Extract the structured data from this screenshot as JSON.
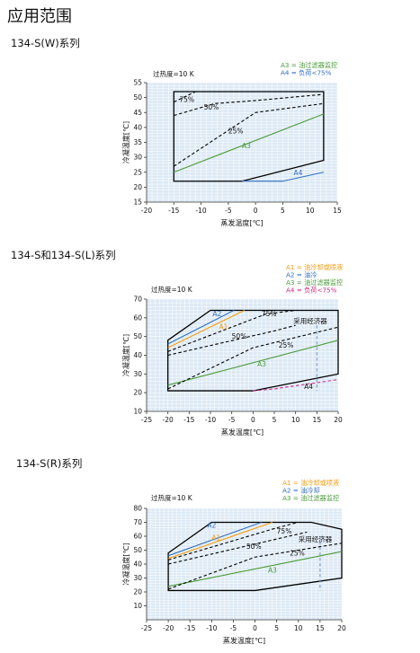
{
  "page": {
    "title": "应用范围"
  },
  "sections": [
    {
      "title": "134-S(W)系列"
    },
    {
      "title": "134-S和134-S(L)系列"
    },
    {
      "title": "134-S(R)系列"
    }
  ],
  "chart_data": [
    {
      "type": "area",
      "subtitle": "过热度=10 K",
      "xlabel": "蒸发温度[℃]",
      "ylabel": "冷凝温度[℃]",
      "xlim": [
        -20,
        15
      ],
      "ylim": [
        15,
        55
      ],
      "xticks": [
        -20,
        -15,
        -10,
        -5,
        0,
        5,
        10,
        15
      ],
      "yticks": [
        15,
        20,
        25,
        30,
        35,
        40,
        45,
        50,
        55
      ],
      "grid": true,
      "legend_position": "top-right",
      "legend": [
        {
          "text": "A3 = 油过滤器监控",
          "color": "#4a9a3a"
        },
        {
          "text": "A4 = 负荷<75%",
          "color": "#2f6fbf"
        }
      ],
      "series": [
        {
          "name": "envelope",
          "color": "#000000",
          "style": "solid",
          "points": [
            [
              -15,
              52
            ],
            [
              12.5,
              52
            ],
            [
              12.5,
              29
            ],
            [
              -2.5,
              22
            ],
            [
              -15,
              22
            ]
          ]
        },
        {
          "name": "A3",
          "color": "#4a9a3a",
          "style": "solid",
          "points": [
            [
              -15,
              25
            ],
            [
              12.5,
              44.5
            ]
          ]
        },
        {
          "name": "A4",
          "color": "#2f6fbf",
          "style": "solid",
          "points": [
            [
              -2.5,
              22
            ],
            [
              5,
              22
            ],
            [
              12.5,
              25
            ]
          ]
        },
        {
          "name": "75%",
          "color": "#000000",
          "style": "dashed",
          "points": [
            [
              -15,
              48.5
            ],
            [
              -11,
              52
            ]
          ]
        },
        {
          "name": "50%",
          "color": "#000000",
          "style": "dashed",
          "points": [
            [
              -15,
              44
            ],
            [
              -7.5,
              48
            ],
            [
              0,
              49
            ],
            [
              12,
              51
            ]
          ]
        },
        {
          "name": "25%",
          "color": "#000000",
          "style": "dashed",
          "points": [
            [
              -15,
              27
            ],
            [
              0,
              45
            ],
            [
              12.5,
              48
            ]
          ]
        }
      ],
      "labels": [
        {
          "text": "75%",
          "x": -14,
          "y": 48.6
        },
        {
          "text": "50%",
          "x": -9.5,
          "y": 46
        },
        {
          "text": "25%",
          "x": -5,
          "y": 38
        },
        {
          "text": "A3",
          "x": -2.5,
          "y": 33
        },
        {
          "text": "A4",
          "x": 7,
          "y": 24
        }
      ]
    },
    {
      "type": "area",
      "subtitle": "过热度=10 K",
      "xlabel": "蒸发温度[℃]",
      "ylabel": "冷凝温度[℃]",
      "xlim": [
        -25,
        20
      ],
      "ylim": [
        10,
        70
      ],
      "xticks": [
        -25,
        -20,
        -15,
        -10,
        -5,
        0,
        5,
        10,
        15,
        20
      ],
      "yticks": [
        10,
        20,
        30,
        40,
        50,
        60,
        70
      ],
      "grid": true,
      "legend_position": "top-right",
      "legend": [
        {
          "text": "A1 = 油冷却或喷液",
          "color": "#f39c12"
        },
        {
          "text": "A2 = 油冷",
          "color": "#2f6fbf"
        },
        {
          "text": "A3 = 油过滤器监控",
          "color": "#4a9a3a"
        },
        {
          "text": "A4 = 负荷<75%",
          "color": "#cc2a8a"
        }
      ],
      "series": [
        {
          "name": "envelope",
          "color": "#000000",
          "style": "solid",
          "points": [
            [
              -20,
              48
            ],
            [
              -10,
              64
            ],
            [
              20,
              64
            ],
            [
              20,
              30
            ],
            [
              0,
              21
            ],
            [
              -20,
              21
            ]
          ]
        },
        {
          "name": "A1",
          "color": "#f39c12",
          "style": "solid",
          "points": [
            [
              -20,
              44
            ],
            [
              -2,
              64
            ]
          ]
        },
        {
          "name": "A2",
          "color": "#2f6fbf",
          "style": "solid",
          "points": [
            [
              -20,
              46
            ],
            [
              -4.5,
              64
            ]
          ]
        },
        {
          "name": "A3",
          "color": "#4a9a3a",
          "style": "solid",
          "points": [
            [
              -20,
              24
            ],
            [
              20,
              48
            ]
          ]
        },
        {
          "name": "A4",
          "color": "#cc2a8a",
          "style": "dashed",
          "points": [
            [
              0,
              21
            ],
            [
              5,
              22
            ],
            [
              20,
              27
            ]
          ]
        },
        {
          "name": "75%",
          "color": "#000000",
          "style": "dashed",
          "points": [
            [
              -20,
              42
            ],
            [
              3,
              62
            ],
            [
              10,
              64
            ]
          ]
        },
        {
          "name": "50%",
          "color": "#000000",
          "style": "dashed",
          "points": [
            [
              -20,
              40
            ],
            [
              5,
              53
            ],
            [
              10,
              56
            ]
          ]
        },
        {
          "name": "25%",
          "color": "#000000",
          "style": "dashed",
          "points": [
            [
              -20,
              22
            ],
            [
              0,
              44
            ],
            [
              20,
              55
            ]
          ]
        },
        {
          "name": "economizer",
          "color": "#7ba0cc",
          "style": "dashed",
          "points": [
            [
              15,
              56
            ],
            [
              15,
              21
            ]
          ]
        }
      ],
      "labels": [
        {
          "text": "A2",
          "x": -9.5,
          "y": 61
        },
        {
          "text": "A1",
          "x": -8,
          "y": 54
        },
        {
          "text": "75%",
          "x": 2,
          "y": 61
        },
        {
          "text": "采用经济器",
          "x": 9.5,
          "y": 57
        },
        {
          "text": "50%",
          "x": -5,
          "y": 49
        },
        {
          "text": "25%",
          "x": 6,
          "y": 44
        },
        {
          "text": "A3",
          "x": 1,
          "y": 34
        },
        {
          "text": "A4",
          "x": 12,
          "y": 22
        }
      ]
    },
    {
      "type": "area",
      "subtitle": "过热度=10 K",
      "xlabel": "蒸发温度[℃]",
      "ylabel": "冷凝温度[℃]",
      "xlim": [
        -25,
        20
      ],
      "ylim": [
        0,
        80
      ],
      "xticks": [
        -25,
        -20,
        -15,
        -10,
        -5,
        0,
        5,
        10,
        15,
        20
      ],
      "yticks": [
        10,
        20,
        30,
        40,
        50,
        60,
        70,
        80
      ],
      "grid": true,
      "legend_position": "top-right",
      "legend": [
        {
          "text": "A1 = 油冷却或喷液",
          "color": "#f39c12"
        },
        {
          "text": "A2 = 油冷却",
          "color": "#2f6fbf"
        },
        {
          "text": "A3 = 油过滤器监控",
          "color": "#4a9a3a"
        }
      ],
      "series": [
        {
          "name": "envelope",
          "color": "#000000",
          "style": "solid",
          "points": [
            [
              -20,
              48
            ],
            [
              -10,
              70
            ],
            [
              13,
              70
            ],
            [
              20,
              65
            ],
            [
              20,
              30
            ],
            [
              0,
              21
            ],
            [
              -20,
              21
            ]
          ]
        },
        {
          "name": "A1",
          "color": "#f39c12",
          "style": "solid",
          "points": [
            [
              -20,
              44
            ],
            [
              4,
              70
            ]
          ]
        },
        {
          "name": "A2",
          "color": "#2f6fbf",
          "style": "solid",
          "points": [
            [
              -20,
              46
            ],
            [
              1.5,
              70
            ]
          ]
        },
        {
          "name": "A3",
          "color": "#4a9a3a",
          "style": "solid",
          "points": [
            [
              -20,
              24
            ],
            [
              20,
              49
            ]
          ]
        },
        {
          "name": "75%",
          "color": "#000000",
          "style": "dashed",
          "points": [
            [
              -20,
              43
            ],
            [
              5,
              66
            ],
            [
              10,
              70
            ]
          ]
        },
        {
          "name": "50%",
          "color": "#000000",
          "style": "dashed",
          "points": [
            [
              -20,
              40
            ],
            [
              5,
              58
            ],
            [
              12,
              63
            ]
          ]
        },
        {
          "name": "25%",
          "color": "#000000",
          "style": "dashed",
          "points": [
            [
              -20,
              22
            ],
            [
              0,
              45
            ],
            [
              20,
              55
            ]
          ]
        },
        {
          "name": "economizer",
          "color": "#7ba0cc",
          "style": "dashed",
          "points": [
            [
              15,
              60
            ],
            [
              15,
              21
            ]
          ]
        }
      ],
      "labels": [
        {
          "text": "A2",
          "x": -11,
          "y": 66
        },
        {
          "text": "A1",
          "x": -10,
          "y": 57
        },
        {
          "text": "75%",
          "x": 5,
          "y": 62
        },
        {
          "text": "采用经济器",
          "x": 10,
          "y": 56
        },
        {
          "text": "50%",
          "x": -2,
          "y": 51
        },
        {
          "text": "25%",
          "x": 8,
          "y": 46
        },
        {
          "text": "A3",
          "x": 3,
          "y": 34
        }
      ]
    }
  ]
}
